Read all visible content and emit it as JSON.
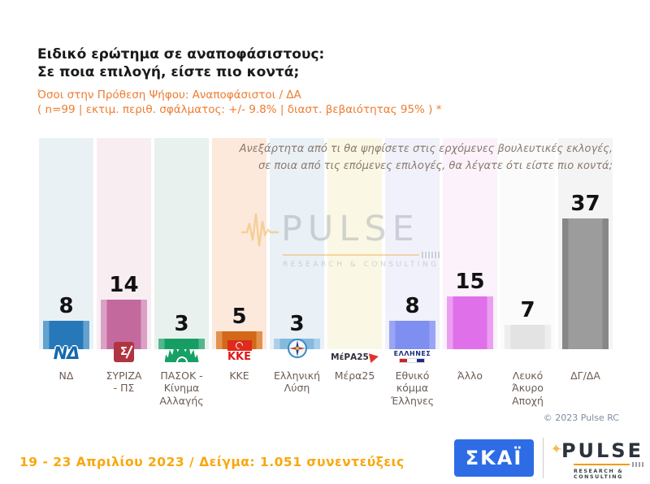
{
  "header": {
    "title_line1": "Ειδικό ερώτημα σε αναποφάσιστους:",
    "title_line2": "Σε ποια επιλογή, είστε πιο κοντά;",
    "subtitle_line1": "Όσοι στην Πρόθεση Ψήφου: Αναποφάσιστοι / ΔΑ",
    "subtitle_line2": "( n=99  |  εκτιμ. περιθ. σφάλματος: +/- 9.8%  |  διαστ. βεβαιότητας 95% ) *"
  },
  "question_note": {
    "line1": "Ανεξάρτητα από τι θα ψηφίσετε στις ερχόμενες βουλευτικές εκλογές,",
    "line2": "σε ποια από τις επόμενες επιλογές, θα λέγατε ότι είστε πιο κοντά;"
  },
  "chart_data": {
    "type": "bar",
    "title": "Ειδικό ερώτημα σε αναποφάσιστους: Σε ποια επιλογή, είστε πιο κοντά;",
    "categories": [
      "ΝΔ",
      "ΣΥΡΙΖΑ\n- ΠΣ",
      "ΠΑΣΟΚ -\nΚίνημα\nΑλλαγής",
      "ΚΚΕ",
      "Ελληνική\nΛύση",
      "Μέρα25",
      "Εθνικό\nκόμμα\nΈλληνες",
      "Άλλο",
      "Λευκό\nΆκυρο\nΑποχή",
      "ΔΓ/ΔΑ"
    ],
    "values": [
      8,
      14,
      3,
      5,
      3,
      0,
      8,
      15,
      7,
      37
    ],
    "value_labels": [
      "8",
      "14",
      "3",
      "5",
      "3",
      "",
      "8",
      "15",
      "7",
      "37"
    ],
    "ylabel": "",
    "xlabel": "",
    "ylim": [
      0,
      40
    ],
    "grid": false,
    "legend": false,
    "bar_main_colors": [
      "#2778b8",
      "#c4699e",
      "#169d63",
      "#d26818",
      "#85badf",
      "#ffffff",
      "#7e8ef1",
      "#e070ea",
      "#e3e3e3",
      "#9c9c9c"
    ],
    "bar_edge_colors": [
      "#63a2cf",
      "#d9a2c4",
      "#52b78c",
      "#e1924e",
      "#aacfe9",
      "#ffffff",
      "#99a5f4",
      "#ec9ff2",
      "#eeeeee",
      "#878787"
    ],
    "column_tints": [
      "#eaf1f5",
      "#f8eef2",
      "#e9f1ef",
      "#fce9dc",
      "#e9f0f6",
      "#faf7e4",
      "#f0f1fa",
      "#fbf2fc",
      "#fbfbfb",
      "#f4f4f4"
    ],
    "logos": [
      {
        "icon": "nd-party-logo-icon",
        "text": "ΝΔ"
      },
      {
        "icon": "syriza-party-logo-icon",
        "text": "Σ"
      },
      {
        "icon": "pasok-sun-logo-icon",
        "text": ""
      },
      {
        "icon": "kke-party-logo-icon",
        "text": "ΚΚΕ"
      },
      {
        "icon": "elliniki-lysi-compass-logo-icon",
        "text": ""
      },
      {
        "icon": "mera25-party-logo-icon",
        "text": "ΜέΡΑ25"
      },
      {
        "icon": "ellines-party-logo-icon",
        "text": "ΕΛΛΗΝΕΣ"
      },
      null,
      null,
      null
    ]
  },
  "watermark": {
    "word": "PULSE",
    "tagline": "RESEARCH & CONSULTING"
  },
  "copyright": "© 2023 Pulse RC",
  "footer": {
    "fieldwork": "19 - 23  Απριλίου  2023  /  Δείγμα:  1.051 συνεντεύξεις",
    "skai_label": "ΣΚΑΪ",
    "pulse_word": "PULSE",
    "pulse_tagline": "RESEARCH & CONSULTING"
  },
  "colors": {
    "subtitle_orange": "#ed7c31",
    "fieldwork_gold": "#f9a70c",
    "skai_blue": "#2d6ce5",
    "pulse_orange": "#f59b00",
    "value_label": "#121212",
    "category_label": "#6b5c54"
  }
}
